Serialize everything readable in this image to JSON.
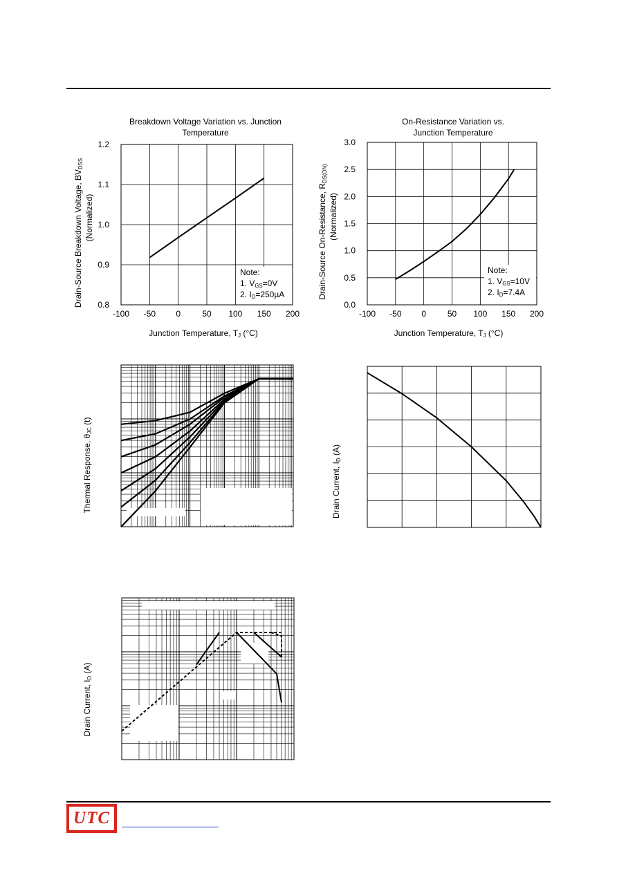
{
  "chart_data": [
    {
      "type": "line",
      "title": [
        "Breakdown Voltage Variation vs. Junction",
        "Temperature"
      ],
      "xlabel": "Junction Temperature, T",
      "xlabel_sub": "J",
      "xlabel_unit": " (°C)",
      "ylabel": [
        "Drain-Source Breakdown Voltage, BV",
        "(Normalized)"
      ],
      "ylabel_sub": "DSS",
      "xlim": [
        -100,
        200
      ],
      "ylim": [
        0.8,
        1.2
      ],
      "xticks": [
        -100,
        -50,
        0,
        50,
        100,
        150,
        200
      ],
      "yticks": [
        0.8,
        0.9,
        1.0,
        1.1,
        1.2
      ],
      "xtick_labels": [
        "-100",
        "-50",
        "0",
        "50",
        "100",
        "150",
        "200"
      ],
      "ytick_labels": [
        "0.8",
        "0.9",
        "1.0",
        "1.1",
        "1.2"
      ],
      "grid": true,
      "series": [
        {
          "x": [
            -50,
            0,
            50,
            100,
            150
          ],
          "y": [
            0.918,
            0.968,
            1.017,
            1.066,
            1.116
          ]
        }
      ],
      "note": [
        "Note:",
        "1. V",
        "GS",
        "=0V",
        "2. I",
        "D",
        "=250µA"
      ]
    },
    {
      "type": "line",
      "title": [
        "On-Resistance Variation vs.",
        "Junction Temperature"
      ],
      "xlabel": "Junction Temperature, T",
      "xlabel_sub": "J",
      "xlabel_unit": " (°C)",
      "ylabel": [
        "Drain-Source On-Resistance, R",
        "(Normalized)"
      ],
      "ylabel_sub": "DS(ON)",
      "xlim": [
        -100,
        200
      ],
      "ylim": [
        0.0,
        3.0
      ],
      "xticks": [
        -100,
        -50,
        0,
        50,
        100,
        150,
        200
      ],
      "yticks": [
        0.0,
        0.5,
        1.0,
        1.5,
        2.0,
        2.5,
        3.0
      ],
      "xtick_labels": [
        "-100",
        "-50",
        "0",
        "50",
        "100",
        "150",
        "200"
      ],
      "ytick_labels": [
        "0.0",
        "0.5",
        "1.0",
        "1.5",
        "2.0",
        "2.5",
        "3.0"
      ],
      "grid": true,
      "series": [
        {
          "x": [
            -50,
            -25,
            0,
            25,
            50,
            75,
            100,
            125,
            150,
            160
          ],
          "y": [
            0.47,
            0.63,
            0.8,
            0.98,
            1.17,
            1.4,
            1.67,
            1.98,
            2.33,
            2.5
          ]
        }
      ],
      "note": [
        "Note:",
        "1. V",
        "GS",
        "=10V",
        "2. I",
        "D",
        "=7.4A"
      ]
    },
    {
      "type": "line",
      "title": "",
      "xlabel": "",
      "ylabel": "Thermal Response, θ",
      "ylabel_sub": "JC",
      "ylabel_unit": " (t)",
      "xscale": "log",
      "yscale": "log",
      "grid": true,
      "series": [
        {
          "x": [
            1e-05,
            0.0001,
            0.001,
            0.01,
            0.1,
            1
          ],
          "y": [
            0.12,
            0.14,
            0.2,
            0.45,
            0.95,
            1.0
          ]
        },
        {
          "x": [
            1e-05,
            0.0001,
            0.001,
            0.01,
            0.1,
            1
          ],
          "y": [
            0.06,
            0.08,
            0.15,
            0.4,
            0.93,
            1.0
          ]
        },
        {
          "x": [
            1e-05,
            0.0001,
            0.001,
            0.01,
            0.1,
            1
          ],
          "y": [
            0.03,
            0.05,
            0.12,
            0.38,
            0.92,
            1.0
          ]
        },
        {
          "x": [
            1e-05,
            0.0001,
            0.001,
            0.01,
            0.1,
            1
          ],
          "y": [
            0.015,
            0.03,
            0.09,
            0.35,
            0.91,
            1.0
          ]
        },
        {
          "x": [
            1e-05,
            0.0001,
            0.001,
            0.01,
            0.1,
            1
          ],
          "y": [
            0.007,
            0.018,
            0.07,
            0.33,
            0.9,
            1.0
          ]
        },
        {
          "x": [
            1e-05,
            0.0001,
            0.001,
            0.01,
            0.1,
            1
          ],
          "y": [
            0.0035,
            0.011,
            0.055,
            0.31,
            0.9,
            1.0
          ]
        },
        {
          "x": [
            1e-05,
            0.0001,
            0.001,
            0.01,
            0.1,
            1
          ],
          "y": [
            0.0015,
            0.007,
            0.045,
            0.3,
            0.89,
            1.0
          ]
        }
      ]
    },
    {
      "type": "line",
      "title": "",
      "xlabel": "",
      "ylabel": "Drain Current, I",
      "ylabel_sub": "D",
      "ylabel_unit": " (A)",
      "xlim": [
        0,
        1
      ],
      "ylim": [
        0,
        1
      ],
      "grid": true,
      "series": [
        {
          "x": [
            0,
            0.2,
            0.4,
            0.6,
            0.8,
            0.9,
            0.96,
            1.0
          ],
          "y": [
            0.96,
            0.83,
            0.68,
            0.5,
            0.29,
            0.16,
            0.07,
            0.0
          ]
        }
      ]
    },
    {
      "type": "line",
      "title": "",
      "xlabel": "",
      "ylabel": "Drain Current, I",
      "ylabel_sub": "D",
      "ylabel_unit": " (A)",
      "xscale": "log",
      "yscale": "log",
      "grid": true,
      "series": [
        {
          "style": "dashed",
          "x": [
            0.1,
            10,
            100
          ],
          "y": [
            1,
            20,
            20
          ]
        },
        {
          "style": "solid",
          "x": [
            10,
            50,
            100
          ],
          "y": [
            12,
            4,
            2
          ]
        },
        {
          "style": "solid",
          "x": [
            20,
            70
          ],
          "y": [
            16,
            6
          ]
        },
        {
          "style": "dashed",
          "x": [
            40,
            90,
            100
          ],
          "y": [
            20,
            10,
            6
          ]
        },
        {
          "style": "solid",
          "x": [
            2,
            5
          ],
          "y": [
            5,
            14
          ]
        }
      ]
    }
  ]
}
